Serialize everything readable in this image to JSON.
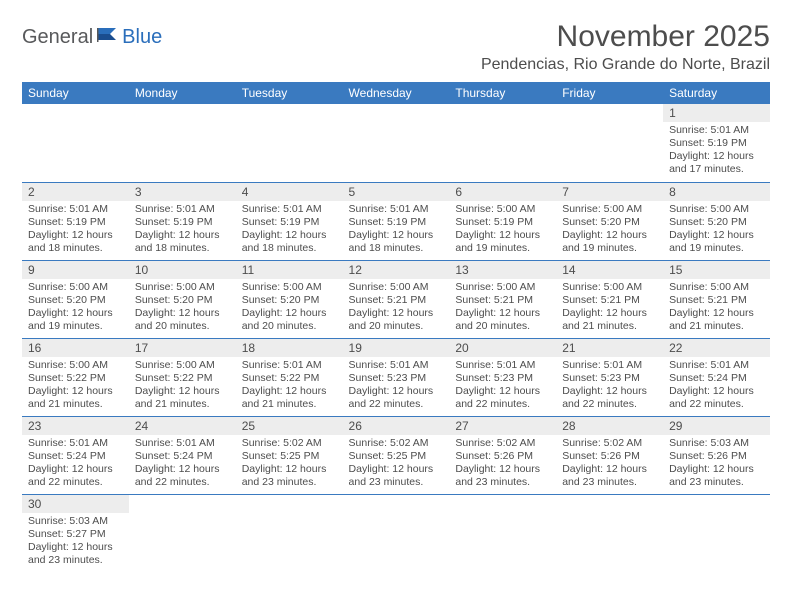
{
  "brand": {
    "part1": "General",
    "part2": "Blue"
  },
  "title": "November 2025",
  "location": "Pendencias, Rio Grande do Norte, Brazil",
  "colors": {
    "header_bg": "#3a7ac0",
    "header_text": "#ffffff",
    "daynum_bg": "#ededed",
    "text": "#4d4d4d",
    "rule": "#3a7ac0",
    "brand_gray": "#58595b",
    "brand_blue": "#2a6ebb",
    "page_bg": "#ffffff"
  },
  "weekdays": [
    "Sunday",
    "Monday",
    "Tuesday",
    "Wednesday",
    "Thursday",
    "Friday",
    "Saturday"
  ],
  "layout": {
    "columns": 7,
    "rows": 6,
    "first_weekday_index": 6,
    "days_in_month": 30
  },
  "days": {
    "1": {
      "sunrise": "5:01 AM",
      "sunset": "5:19 PM",
      "daylight": "12 hours and 17 minutes."
    },
    "2": {
      "sunrise": "5:01 AM",
      "sunset": "5:19 PM",
      "daylight": "12 hours and 18 minutes."
    },
    "3": {
      "sunrise": "5:01 AM",
      "sunset": "5:19 PM",
      "daylight": "12 hours and 18 minutes."
    },
    "4": {
      "sunrise": "5:01 AM",
      "sunset": "5:19 PM",
      "daylight": "12 hours and 18 minutes."
    },
    "5": {
      "sunrise": "5:01 AM",
      "sunset": "5:19 PM",
      "daylight": "12 hours and 18 minutes."
    },
    "6": {
      "sunrise": "5:00 AM",
      "sunset": "5:19 PM",
      "daylight": "12 hours and 19 minutes."
    },
    "7": {
      "sunrise": "5:00 AM",
      "sunset": "5:20 PM",
      "daylight": "12 hours and 19 minutes."
    },
    "8": {
      "sunrise": "5:00 AM",
      "sunset": "5:20 PM",
      "daylight": "12 hours and 19 minutes."
    },
    "9": {
      "sunrise": "5:00 AM",
      "sunset": "5:20 PM",
      "daylight": "12 hours and 19 minutes."
    },
    "10": {
      "sunrise": "5:00 AM",
      "sunset": "5:20 PM",
      "daylight": "12 hours and 20 minutes."
    },
    "11": {
      "sunrise": "5:00 AM",
      "sunset": "5:20 PM",
      "daylight": "12 hours and 20 minutes."
    },
    "12": {
      "sunrise": "5:00 AM",
      "sunset": "5:21 PM",
      "daylight": "12 hours and 20 minutes."
    },
    "13": {
      "sunrise": "5:00 AM",
      "sunset": "5:21 PM",
      "daylight": "12 hours and 20 minutes."
    },
    "14": {
      "sunrise": "5:00 AM",
      "sunset": "5:21 PM",
      "daylight": "12 hours and 21 minutes."
    },
    "15": {
      "sunrise": "5:00 AM",
      "sunset": "5:21 PM",
      "daylight": "12 hours and 21 minutes."
    },
    "16": {
      "sunrise": "5:00 AM",
      "sunset": "5:22 PM",
      "daylight": "12 hours and 21 minutes."
    },
    "17": {
      "sunrise": "5:00 AM",
      "sunset": "5:22 PM",
      "daylight": "12 hours and 21 minutes."
    },
    "18": {
      "sunrise": "5:01 AM",
      "sunset": "5:22 PM",
      "daylight": "12 hours and 21 minutes."
    },
    "19": {
      "sunrise": "5:01 AM",
      "sunset": "5:23 PM",
      "daylight": "12 hours and 22 minutes."
    },
    "20": {
      "sunrise": "5:01 AM",
      "sunset": "5:23 PM",
      "daylight": "12 hours and 22 minutes."
    },
    "21": {
      "sunrise": "5:01 AM",
      "sunset": "5:23 PM",
      "daylight": "12 hours and 22 minutes."
    },
    "22": {
      "sunrise": "5:01 AM",
      "sunset": "5:24 PM",
      "daylight": "12 hours and 22 minutes."
    },
    "23": {
      "sunrise": "5:01 AM",
      "sunset": "5:24 PM",
      "daylight": "12 hours and 22 minutes."
    },
    "24": {
      "sunrise": "5:01 AM",
      "sunset": "5:24 PM",
      "daylight": "12 hours and 22 minutes."
    },
    "25": {
      "sunrise": "5:02 AM",
      "sunset": "5:25 PM",
      "daylight": "12 hours and 23 minutes."
    },
    "26": {
      "sunrise": "5:02 AM",
      "sunset": "5:25 PM",
      "daylight": "12 hours and 23 minutes."
    },
    "27": {
      "sunrise": "5:02 AM",
      "sunset": "5:26 PM",
      "daylight": "12 hours and 23 minutes."
    },
    "28": {
      "sunrise": "5:02 AM",
      "sunset": "5:26 PM",
      "daylight": "12 hours and 23 minutes."
    },
    "29": {
      "sunrise": "5:03 AM",
      "sunset": "5:26 PM",
      "daylight": "12 hours and 23 minutes."
    },
    "30": {
      "sunrise": "5:03 AM",
      "sunset": "5:27 PM",
      "daylight": "12 hours and 23 minutes."
    }
  },
  "labels": {
    "sunrise": "Sunrise:",
    "sunset": "Sunset:",
    "daylight": "Daylight:"
  }
}
